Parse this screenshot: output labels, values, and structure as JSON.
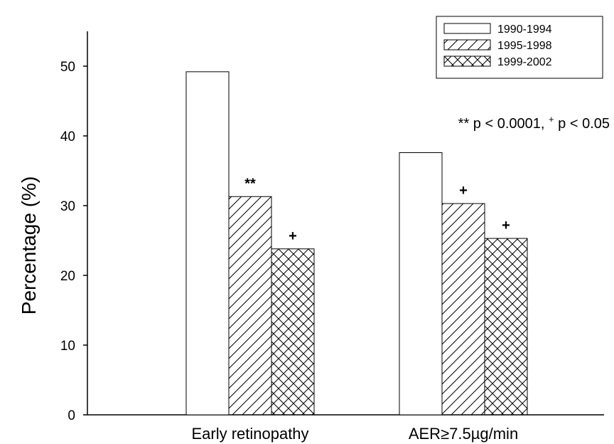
{
  "chart_data": {
    "type": "bar",
    "title": "",
    "xlabel": "",
    "ylabel": "Percentage (%)",
    "ylim": [
      0,
      55
    ],
    "yticks": [
      0,
      10,
      20,
      30,
      40,
      50
    ],
    "grid": false,
    "legend_position": "top-right",
    "categories": [
      "Early retinopathy",
      "AER≥7.5µg/min"
    ],
    "series": [
      {
        "name": "1990-1994",
        "values": [
          49.2,
          37.6
        ],
        "pattern": "none",
        "markers": [
          "",
          ""
        ]
      },
      {
        "name": "1995-1998",
        "values": [
          31.3,
          30.3
        ],
        "pattern": "diagonal-hatch",
        "markers": [
          "**",
          "+"
        ]
      },
      {
        "name": "1999-2002",
        "values": [
          23.8,
          25.3
        ],
        "pattern": "cross-hatch",
        "markers": [
          "+",
          "+"
        ]
      }
    ],
    "annotation": {
      "part1_mark": "**",
      "part1_text": " p < 0.0001, ",
      "part2_mark": "+",
      "part2_text": " p < 0.05"
    }
  }
}
